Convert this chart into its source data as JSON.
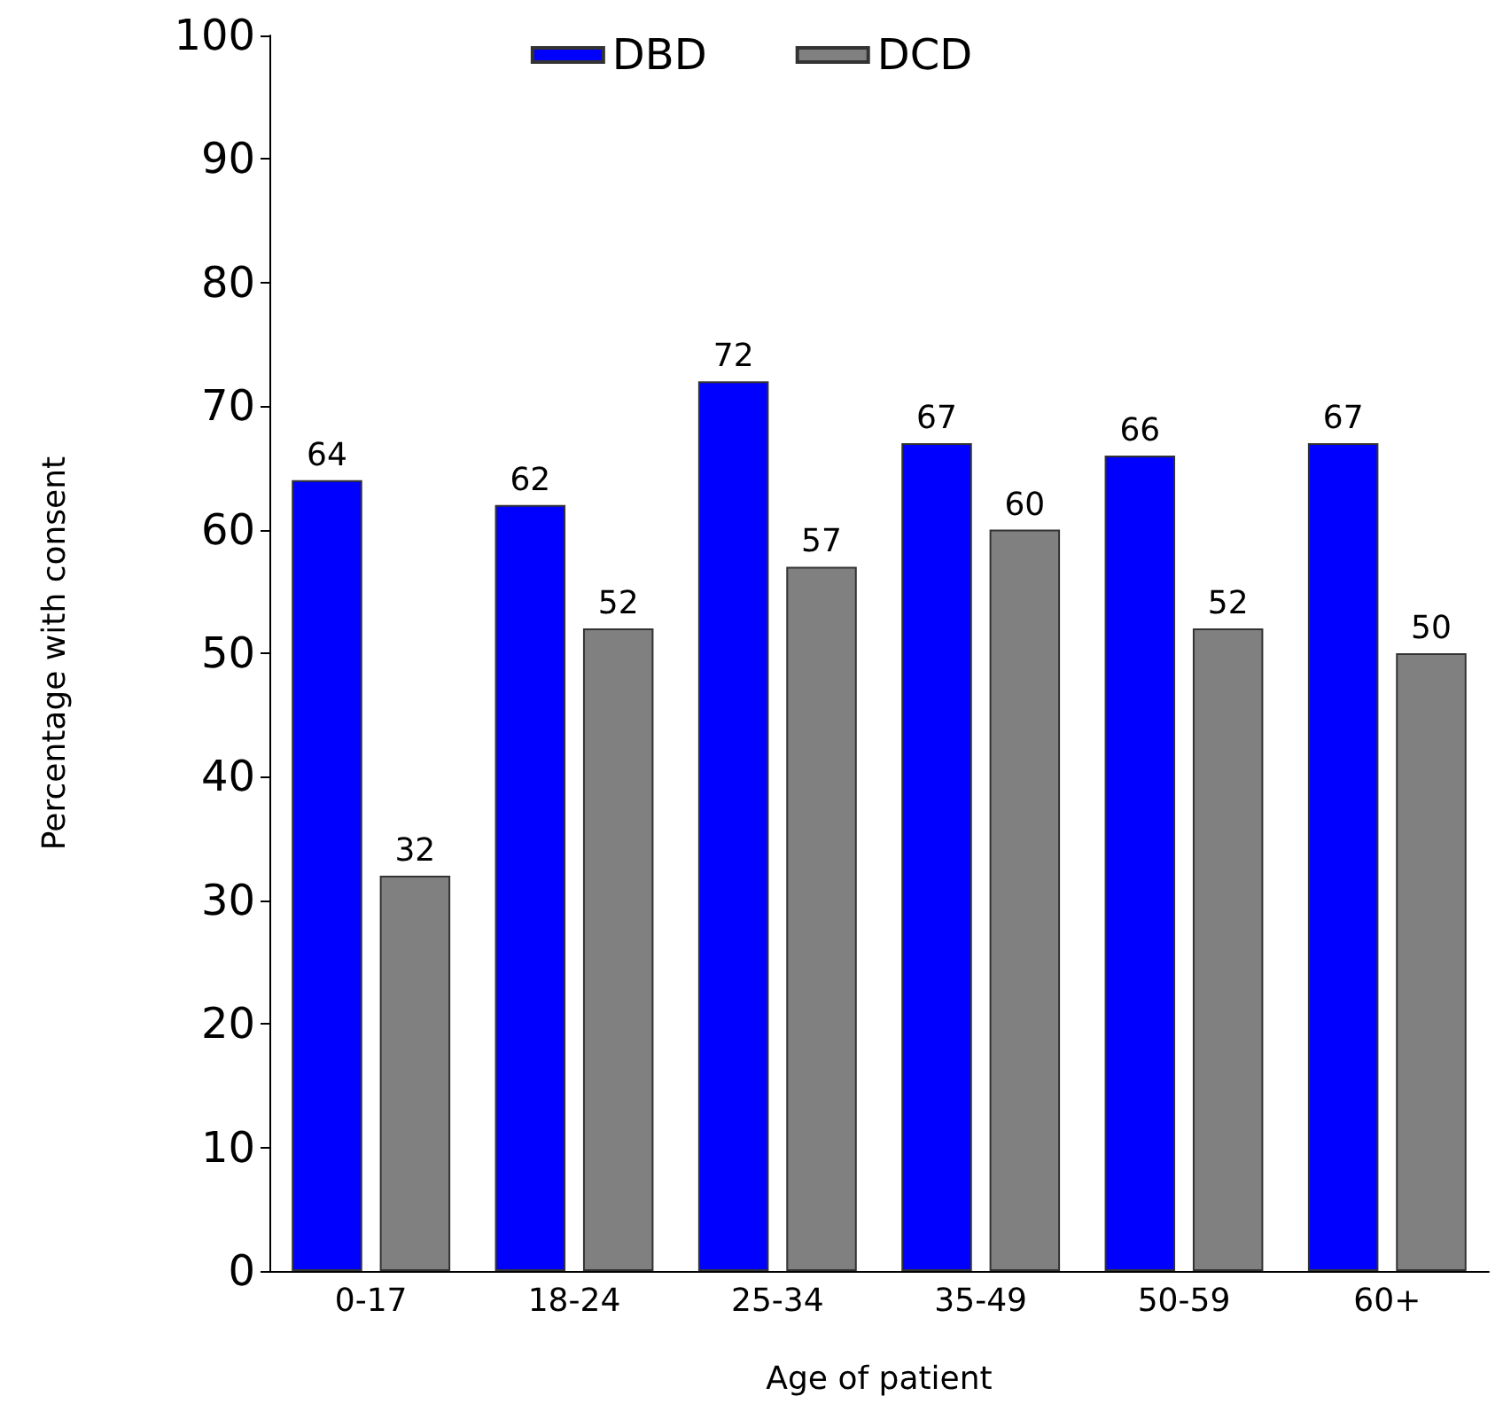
{
  "chart_data": {
    "type": "bar",
    "xlabel": "Age of patient",
    "ylabel": "Percentage with consent",
    "categories": [
      "0-17",
      "18-24",
      "25-34",
      "35-49",
      "50-59",
      "60+"
    ],
    "series": [
      {
        "name": "DBD",
        "color": "#0000ff",
        "values": [
          64,
          62,
          72,
          67,
          66,
          67
        ]
      },
      {
        "name": "DCD",
        "color": "#808080",
        "values": [
          32,
          52,
          57,
          60,
          52,
          50
        ]
      }
    ],
    "ylim": [
      0,
      100
    ],
    "yticks": [
      0,
      10,
      20,
      30,
      40,
      50,
      60,
      70,
      80,
      90,
      100
    ],
    "grid": false,
    "legend": "top",
    "data_labels": true
  }
}
